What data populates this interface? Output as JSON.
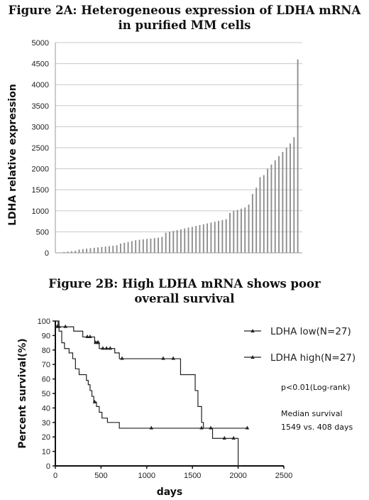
{
  "chart_data": [
    {
      "type": "bar",
      "title": "Figure 2A: Heterogeneous expression of LDHA mRNA in purified MM cells",
      "title_lines": [
        "Figure 2A: Heterogeneous expression of LDHA mRNA",
        "in purified MM cells"
      ],
      "ylabel": "LDHA relative expression",
      "xlabel": "",
      "ylim": [
        0,
        5000
      ],
      "yticks": [
        "0",
        "500",
        "1000",
        "1500",
        "2000",
        "2500",
        "3000",
        "3500",
        "4000",
        "4500",
        "5000"
      ],
      "grid": true,
      "bar_color": "#8c8c8c",
      "values": [
        10,
        20,
        30,
        40,
        50,
        80,
        90,
        100,
        110,
        120,
        130,
        140,
        150,
        160,
        170,
        180,
        220,
        240,
        260,
        280,
        300,
        310,
        320,
        330,
        340,
        350,
        360,
        380,
        480,
        500,
        520,
        540,
        560,
        580,
        600,
        620,
        640,
        660,
        680,
        700,
        720,
        740,
        760,
        780,
        800,
        950,
        1000,
        1020,
        1050,
        1080,
        1150,
        1400,
        1550,
        1800,
        1850,
        2000,
        2100,
        2200,
        2300,
        2400,
        2500,
        2600,
        2750,
        4600
      ]
    },
    {
      "type": "line",
      "subtype": "kaplan-meier",
      "title": "Figure 2B: High LDHA mRNA shows poor overall survival",
      "title_lines": [
        "Figure 2B: High LDHA mRNA shows poor",
        "overall survival"
      ],
      "xlabel": "days",
      "ylabel": "Percent survival(%)",
      "xlim": [
        0,
        2500
      ],
      "ylim": [
        0,
        100
      ],
      "xticks": [
        "0",
        "500",
        "1000",
        "1500",
        "2000",
        "2500"
      ],
      "yticks": [
        "0",
        "10",
        "20",
        "30",
        "40",
        "50",
        "60",
        "70",
        "80",
        "90",
        "100"
      ],
      "legend_position": "right",
      "series": [
        {
          "name": "LDHA low(N=27)",
          "marker": "triangle",
          "color": "#222222",
          "steps": [
            [
              0,
              100
            ],
            [
              30,
              96
            ],
            [
              200,
              93
            ],
            [
              300,
              89
            ],
            [
              430,
              85
            ],
            [
              480,
              81
            ],
            [
              650,
              78
            ],
            [
              700,
              74
            ],
            [
              1370,
              63
            ],
            [
              1530,
              52
            ],
            [
              1560,
              41
            ],
            [
              1600,
              30
            ],
            [
              1620,
              26
            ]
          ],
          "end_x": 2100,
          "censored": [
            [
              40,
              96
            ],
            [
              110,
              96
            ],
            [
              350,
              89
            ],
            [
              380,
              89
            ],
            [
              440,
              85
            ],
            [
              460,
              85
            ],
            [
              470,
              85
            ],
            [
              520,
              81
            ],
            [
              560,
              81
            ],
            [
              600,
              81
            ],
            [
              730,
              74
            ],
            [
              1180,
              74
            ],
            [
              1290,
              74
            ],
            [
              1600,
              26
            ],
            [
              1700,
              26
            ],
            [
              2100,
              26
            ]
          ]
        },
        {
          "name": "LDHA high(N=27)",
          "marker": "triangle",
          "color": "#222222",
          "steps": [
            [
              0,
              100
            ],
            [
              40,
              93
            ],
            [
              70,
              85
            ],
            [
              100,
              81
            ],
            [
              150,
              78
            ],
            [
              190,
              74
            ],
            [
              220,
              67
            ],
            [
              260,
              63
            ],
            [
              340,
              59
            ],
            [
              360,
              56
            ],
            [
              380,
              52
            ],
            [
              400,
              48
            ],
            [
              420,
              44
            ],
            [
              450,
              41
            ],
            [
              480,
              37
            ],
            [
              510,
              33
            ],
            [
              570,
              30
            ],
            [
              700,
              26
            ],
            [
              1720,
              19
            ],
            [
              2000,
              0
            ]
          ],
          "end_x": 2040,
          "censored": [
            [
              20,
              96
            ],
            [
              430,
              44
            ],
            [
              1050,
              26
            ],
            [
              1850,
              19
            ],
            [
              1950,
              19
            ]
          ]
        }
      ],
      "annotations": [
        "p<0.01(Log-rank)",
        "Median survival",
        "1549 vs. 408 days"
      ]
    }
  ]
}
